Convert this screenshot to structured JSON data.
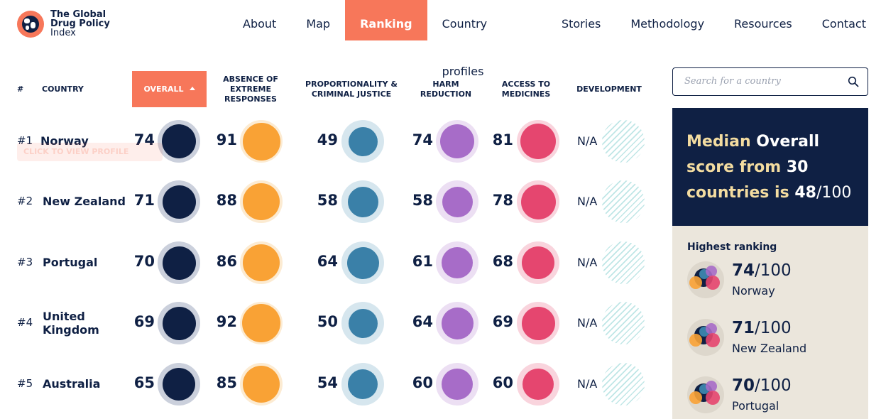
{
  "brand": {
    "line1": "The Global",
    "line2": "Drug Policy",
    "line3": "Index"
  },
  "nav": [
    "About",
    "Map",
    "Ranking",
    "Country profiles",
    "Stories",
    "Methodology",
    "Resources",
    "Contact"
  ],
  "table": {
    "headers": {
      "rank": "#",
      "country": "COUNTRY",
      "overall": "OVERALL",
      "absence_1": "ABSENCE OF",
      "absence_2": "EXTREME",
      "absence_3": "RESPONSES",
      "prop_1": "PROPORTIONALITY &",
      "prop_2": "CRIMINAL JUSTICE",
      "harm_1": "HARM",
      "harm_2": "REDUCTION",
      "access_1": "ACCESS TO",
      "access_2": "MEDICINES",
      "development": "DEVELOPMENT"
    },
    "tooltip": "CLICK TO VIEW PROFILE",
    "rows": [
      {
        "rank": "#1",
        "country_1": "Norway",
        "country_2": "",
        "overall": 74,
        "absence": 91,
        "proportionality": 49,
        "harm": 74,
        "access": 81,
        "development": "N/A"
      },
      {
        "rank": "#2",
        "country_1": "New Zealand",
        "country_2": "",
        "overall": 71,
        "absence": 88,
        "proportionality": 58,
        "harm": 58,
        "access": 78,
        "development": "N/A"
      },
      {
        "rank": "#3",
        "country_1": "Portugal",
        "country_2": "",
        "overall": 70,
        "absence": 86,
        "proportionality": 64,
        "harm": 61,
        "access": 68,
        "development": "N/A"
      },
      {
        "rank": "#4",
        "country_1": "United",
        "country_2": "Kingdom",
        "overall": 69,
        "absence": 92,
        "proportionality": 50,
        "harm": 64,
        "access": 69,
        "development": "N/A"
      },
      {
        "rank": "#5",
        "country_1": "Australia",
        "country_2": "",
        "overall": 65,
        "absence": 85,
        "proportionality": 54,
        "harm": 60,
        "access": 60,
        "development": "N/A"
      }
    ]
  },
  "search": {
    "placeholder": "Search for a country"
  },
  "median": {
    "w1": "Median",
    "w2": "Overall",
    "w3": "score from",
    "w4": "30",
    "w5": "countries is",
    "w6": "48",
    "w7": "/100"
  },
  "highest": {
    "title": "Highest ranking",
    "items": [
      {
        "score": "74",
        "outof": "/100",
        "name": "Norway"
      },
      {
        "score": "71",
        "outof": "/100",
        "name": "New Zealand"
      },
      {
        "score": "70",
        "outof": "/100",
        "name": "Portugal"
      }
    ]
  },
  "colors": {
    "accent": "#f7775a",
    "navy": "#0f2044",
    "overall": "#0f2044",
    "overall_ring": "#cbd0dc",
    "absence": "#f9a235",
    "absence_ring": "#fcebd2",
    "proportionality": "#3a80a8",
    "proportionality_ring": "#d6e6ee",
    "harm": "#a76cc8",
    "harm_ring": "#ecdff3",
    "access": "#e5466f",
    "access_ring": "#f9d4dd",
    "sidebar_bg": "#ebe6dc",
    "median_highlight": "#f3dca0"
  }
}
